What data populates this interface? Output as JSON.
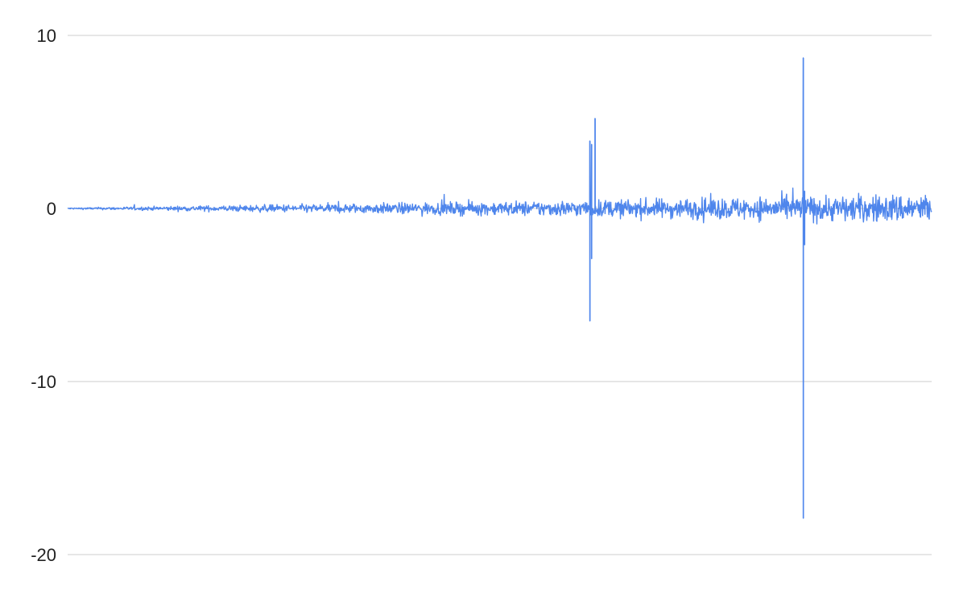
{
  "chart_data": {
    "type": "line",
    "title": "",
    "xlabel": "",
    "ylabel": "",
    "ylim": [
      -20,
      10
    ],
    "grid": true,
    "legend": "none",
    "y_ticks": [
      10,
      0,
      -10,
      -20
    ],
    "y_tick_labels": [
      "10",
      "0",
      "-10",
      "-20"
    ],
    "n_points": 1800,
    "noise_envelope": [
      {
        "x_fraction": 0.0,
        "amplitude": 0.05
      },
      {
        "x_fraction": 0.3,
        "amplitude": 0.3
      },
      {
        "x_fraction": 0.6,
        "amplitude": 0.55
      },
      {
        "x_fraction": 1.0,
        "amplitude": 1.0
      }
    ],
    "spikes": [
      {
        "x_fraction": 0.6045,
        "high": 3.9,
        "low": -6.5
      },
      {
        "x_fraction": 0.6065,
        "high": 3.7,
        "low": -2.9
      },
      {
        "x_fraction": 0.6105,
        "high": 5.2,
        "low": -0.3
      },
      {
        "x_fraction": 0.8515,
        "high": 8.7,
        "low": -17.9
      },
      {
        "x_fraction": 0.853,
        "high": 1.0,
        "low": -2.1
      }
    ]
  },
  "colors": {
    "series": "#4f86ec",
    "grid": "#cccccc",
    "text": "#222222",
    "background": "#ffffff"
  }
}
